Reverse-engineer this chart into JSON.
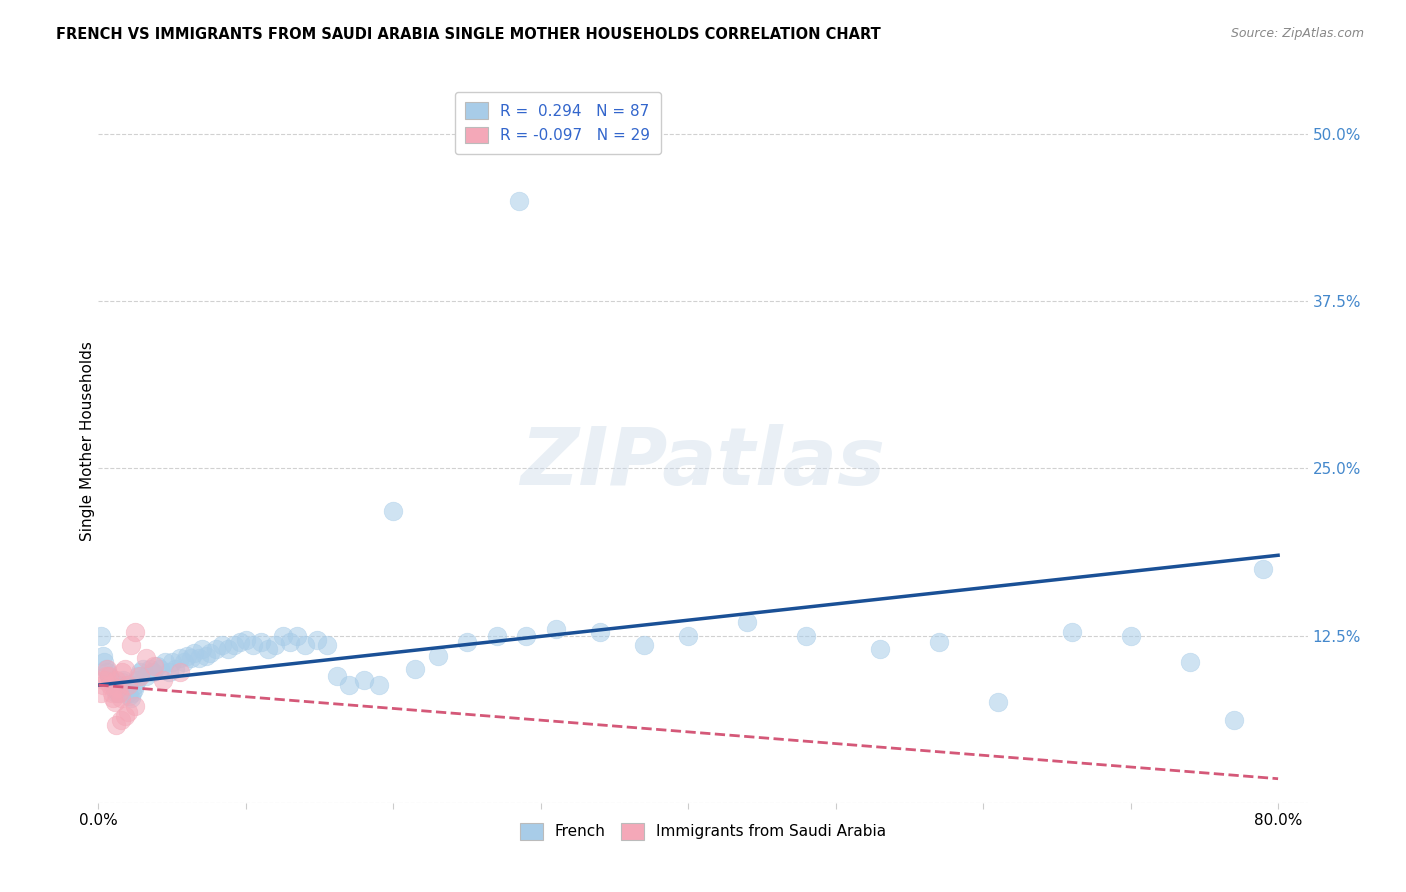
{
  "title": "FRENCH VS IMMIGRANTS FROM SAUDI ARABIA SINGLE MOTHER HOUSEHOLDS CORRELATION CHART",
  "source": "Source: ZipAtlas.com",
  "ylabel": "Single Mother Households",
  "xlim": [
    0.0,
    0.82
  ],
  "ylim": [
    0.0,
    0.54
  ],
  "yticks": [
    0.0,
    0.125,
    0.25,
    0.375,
    0.5
  ],
  "xticks": [
    0.0,
    0.1,
    0.2,
    0.3,
    0.4,
    0.5,
    0.6,
    0.7,
    0.8
  ],
  "xtick_labels": [
    "0.0%",
    "",
    "",
    "",
    "",
    "",
    "",
    "",
    "80.0%"
  ],
  "french_R": 0.294,
  "french_N": 87,
  "saudi_R": -0.097,
  "saudi_N": 29,
  "blue_color": "#a8cce8",
  "blue_line_color": "#1a5096",
  "pink_color": "#f4a8b8",
  "pink_line_color": "#d45878",
  "watermark": "ZIPatlas",
  "legend_blue_label": "French",
  "legend_pink_label": "Immigrants from Saudi Arabia",
  "french_x": [
    0.002,
    0.003,
    0.004,
    0.005,
    0.006,
    0.007,
    0.008,
    0.009,
    0.01,
    0.011,
    0.012,
    0.013,
    0.014,
    0.015,
    0.016,
    0.017,
    0.018,
    0.019,
    0.02,
    0.021,
    0.022,
    0.023,
    0.024,
    0.025,
    0.026,
    0.027,
    0.028,
    0.03,
    0.032,
    0.035,
    0.037,
    0.04,
    0.042,
    0.045,
    0.048,
    0.05,
    0.052,
    0.055,
    0.058,
    0.06,
    0.063,
    0.065,
    0.068,
    0.07,
    0.073,
    0.076,
    0.08,
    0.084,
    0.088,
    0.092,
    0.096,
    0.1,
    0.105,
    0.11,
    0.115,
    0.12,
    0.125,
    0.13,
    0.135,
    0.14,
    0.148,
    0.155,
    0.162,
    0.17,
    0.18,
    0.19,
    0.2,
    0.215,
    0.23,
    0.25,
    0.27,
    0.29,
    0.31,
    0.34,
    0.37,
    0.4,
    0.44,
    0.48,
    0.53,
    0.57,
    0.61,
    0.66,
    0.7,
    0.74,
    0.77,
    0.79,
    0.285
  ],
  "french_y": [
    0.125,
    0.11,
    0.105,
    0.1,
    0.098,
    0.095,
    0.092,
    0.09,
    0.088,
    0.085,
    0.082,
    0.082,
    0.085,
    0.088,
    0.09,
    0.092,
    0.088,
    0.085,
    0.082,
    0.08,
    0.078,
    0.082,
    0.085,
    0.088,
    0.092,
    0.095,
    0.098,
    0.1,
    0.095,
    0.1,
    0.098,
    0.102,
    0.1,
    0.105,
    0.098,
    0.105,
    0.1,
    0.108,
    0.105,
    0.11,
    0.108,
    0.112,
    0.108,
    0.115,
    0.11,
    0.112,
    0.115,
    0.118,
    0.115,
    0.118,
    0.12,
    0.122,
    0.118,
    0.12,
    0.115,
    0.118,
    0.125,
    0.12,
    0.125,
    0.118,
    0.122,
    0.118,
    0.095,
    0.088,
    0.092,
    0.088,
    0.218,
    0.1,
    0.11,
    0.12,
    0.125,
    0.125,
    0.13,
    0.128,
    0.118,
    0.125,
    0.135,
    0.125,
    0.115,
    0.12,
    0.075,
    0.128,
    0.125,
    0.105,
    0.062,
    0.175,
    0.45
  ],
  "saudi_x": [
    0.002,
    0.003,
    0.004,
    0.005,
    0.006,
    0.007,
    0.008,
    0.009,
    0.01,
    0.011,
    0.012,
    0.013,
    0.014,
    0.015,
    0.016,
    0.018,
    0.02,
    0.022,
    0.025,
    0.028,
    0.032,
    0.038,
    0.044,
    0.055,
    0.025,
    0.018,
    0.012,
    0.015,
    0.02
  ],
  "saudi_y": [
    0.082,
    0.088,
    0.092,
    0.095,
    0.1,
    0.095,
    0.088,
    0.082,
    0.078,
    0.075,
    0.092,
    0.086,
    0.082,
    0.078,
    0.098,
    0.1,
    0.088,
    0.118,
    0.128,
    0.095,
    0.108,
    0.102,
    0.092,
    0.098,
    0.072,
    0.065,
    0.058,
    0.062,
    0.068
  ],
  "blue_trend_x": [
    0.0,
    0.8
  ],
  "blue_trend_y": [
    0.088,
    0.185
  ],
  "pink_trend_x": [
    0.0,
    0.8
  ],
  "pink_trend_y": [
    0.088,
    0.018
  ]
}
